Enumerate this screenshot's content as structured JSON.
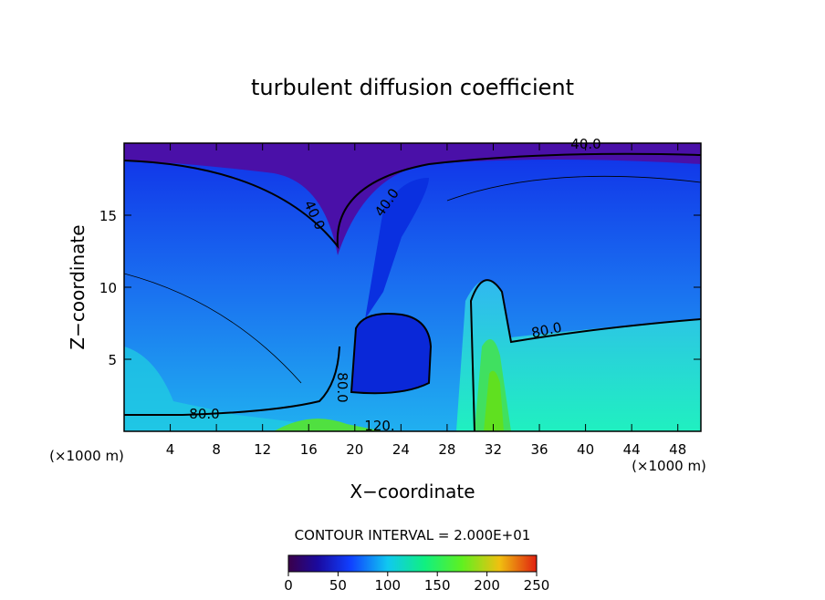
{
  "chart_data": {
    "type": "contour",
    "title": "turbulent diffusion coefficient",
    "xlabel": "X−coordinate",
    "ylabel": "Z−coordinate",
    "x_unit_left": "(×1000 m)",
    "x_unit_right": "(×1000 m)",
    "xlim": [
      0,
      50
    ],
    "xticks": [
      4,
      8,
      12,
      16,
      20,
      24,
      28,
      32,
      36,
      40,
      44,
      48
    ],
    "ylim": [
      0,
      20
    ],
    "yticks": [
      5,
      10,
      15
    ],
    "contour_interval": "CONTOUR INTERVAL = 2.000E+01",
    "contour_labels": [
      "40.0",
      "40.0",
      "40.0",
      "80.0",
      "80.0",
      "80.0",
      "120."
    ],
    "clim": [
      0,
      250
    ],
    "cticks": [
      0,
      50,
      100,
      150,
      200,
      250
    ]
  }
}
